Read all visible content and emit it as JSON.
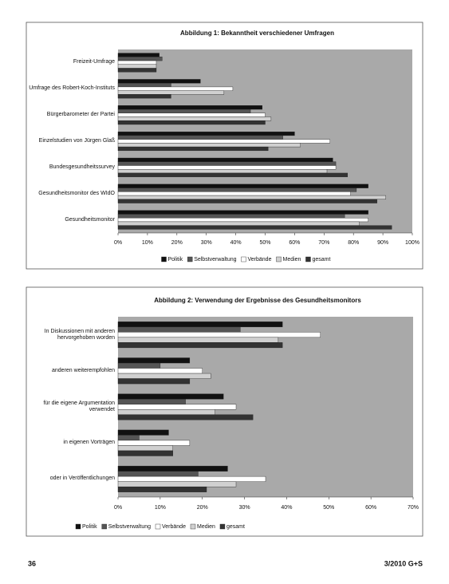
{
  "chart_data": [
    {
      "type": "hbar",
      "title": "Abbildung 1: Bekanntheit verschiedener Umfragen",
      "categories": [
        "Freizeit-Umfrage",
        "Umfrage des Robert-Koch-Instituts",
        "Bürgerbarometer der Partei",
        "Einzelstudien von Jürgen Glaß",
        "Bundesgesundheitssurvey",
        "Gesundheitsmonitor des WIdO",
        "Gesundheitsmonitor"
      ],
      "series": [
        {
          "name": "Politik",
          "color": "#111111",
          "values": [
            14,
            28,
            49,
            60,
            73,
            85,
            85
          ]
        },
        {
          "name": "Selbstverwaltung",
          "color": "#555555",
          "values": [
            15,
            18,
            45,
            56,
            74,
            81,
            77
          ]
        },
        {
          "name": "Verbände",
          "color": "#ffffff",
          "values": [
            13,
            39,
            50,
            72,
            74,
            79,
            85
          ]
        },
        {
          "name": "Medien",
          "color": "#d0d0d0",
          "values": [
            13,
            36,
            52,
            62,
            71,
            91,
            82
          ]
        },
        {
          "name": "gesamt",
          "color": "#333333",
          "values": [
            13,
            18,
            50,
            51,
            78,
            88,
            93
          ]
        }
      ],
      "xlim": [
        0,
        100
      ],
      "xticks": [
        {
          "value": 0,
          "label": "0%"
        },
        {
          "value": 10,
          "label": "10%"
        },
        {
          "value": 20,
          "label": "20%"
        },
        {
          "value": 30,
          "label": "30%"
        },
        {
          "value": 40,
          "label": "40%"
        },
        {
          "value": 50,
          "label": "50%"
        },
        {
          "value": 60,
          "label": "60%"
        },
        {
          "value": 70,
          "label": "70%"
        },
        {
          "value": 80,
          "label": "80%"
        },
        {
          "value": 90,
          "label": "90%"
        },
        {
          "value": 100,
          "label": "100%"
        }
      ],
      "legend": "bottom"
    },
    {
      "type": "hbar",
      "title": "Abbildung 2: Verwendung der Ergebnisse des Gesundheitsmonitors",
      "categories": [
        "In Diskussionen mit anderen hervorgehoben worden",
        "anderen weiterempfohlen",
        "für die eigene Argumentation verwendet",
        "in eigenen Vorträgen",
        "oder in Veröffentlichungen"
      ],
      "series": [
        {
          "name": "Politik",
          "color": "#111111",
          "values": [
            39,
            17,
            25,
            12,
            26
          ]
        },
        {
          "name": "Selbstverwaltung",
          "color": "#555555",
          "values": [
            29,
            10,
            16,
            5,
            19
          ]
        },
        {
          "name": "Verbände",
          "color": "#ffffff",
          "values": [
            48,
            20,
            28,
            17,
            35
          ]
        },
        {
          "name": "Medien",
          "color": "#d0d0d0",
          "values": [
            38,
            22,
            23,
            13,
            28
          ]
        },
        {
          "name": "gesamt",
          "color": "#333333",
          "values": [
            39,
            17,
            32,
            13,
            21
          ]
        }
      ],
      "xlim": [
        0,
        70
      ],
      "xticks": [
        {
          "value": 0,
          "label": "0%"
        },
        {
          "value": 10,
          "label": "10%"
        },
        {
          "value": 20,
          "label": "20%"
        },
        {
          "value": 30,
          "label": "30%"
        },
        {
          "value": 40,
          "label": "40%"
        },
        {
          "value": 50,
          "label": "50%"
        },
        {
          "value": 60,
          "label": "60%"
        },
        {
          "value": 70,
          "label": "70%"
        }
      ],
      "legend": "bottom"
    }
  ],
  "footer": {
    "page": "36",
    "issue": "3/2010 G+S"
  }
}
